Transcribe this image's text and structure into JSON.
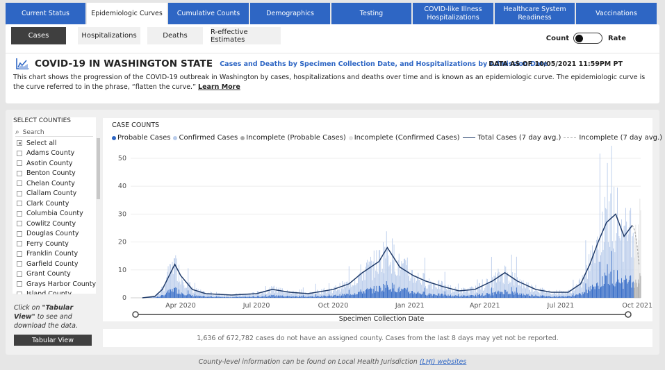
{
  "nav": {
    "tabs": [
      {
        "label": "Current Status",
        "active": false
      },
      {
        "label": "Epidemiologic Curves",
        "active": true
      },
      {
        "label": "Cumulative Counts",
        "active": false
      },
      {
        "label": "Demographics",
        "active": false
      },
      {
        "label": "Testing",
        "active": false
      },
      {
        "label": "COVID-like Illness Hospitalizations",
        "active": false
      },
      {
        "label": "Healthcare System Readiness",
        "active": false
      },
      {
        "label": "Vaccinations",
        "active": false
      }
    ]
  },
  "subtabs": [
    {
      "label": "Cases",
      "active": true
    },
    {
      "label": "Hospitalizations",
      "active": false
    },
    {
      "label": "Deaths",
      "active": false
    },
    {
      "label": "R-effective Estimates",
      "active": false
    }
  ],
  "toggle": {
    "left_label": "Count",
    "right_label": "Rate",
    "state": "Count"
  },
  "header": {
    "icon": "chart-icon",
    "title": "COVID-19 IN WASHINGTON STATE",
    "subtitle": "Cases and Deaths by Specimen Collection Date, and Hospitalizations by Admission Date",
    "data_as_of": "DATA AS OF 10/05/2021 11:59PM PT",
    "description": "This chart shows the progression of the COVID-19 outbreak in Washington by cases, hospitalizations and deaths over time and is known as an epidemiologic curve. The epidemiologic curve is the curve referred to in the phrase, “flatten the curve.”",
    "learn_more": "Learn More"
  },
  "county_filter": {
    "title": "SELECT COUNTIES",
    "search_placeholder": "Search",
    "select_all": "Select all",
    "counties": [
      "Adams County",
      "Asotin County",
      "Benton County",
      "Chelan County",
      "Clallam County",
      "Clark County",
      "Columbia County",
      "Cowlitz County",
      "Douglas County",
      "Ferry County",
      "Franklin County",
      "Garfield County",
      "Grant County",
      "Grays Harbor County",
      "Island County"
    ]
  },
  "tabular": {
    "note_prefix": "Click on ",
    "note_bold": "\"Tabular View\"",
    "note_suffix": " to see and download the data.",
    "button": "Tabular View"
  },
  "chart": {
    "heading": "CASE COUNTS",
    "legend": [
      {
        "label": "Probable Cases",
        "color": "#2e66c4",
        "kind": "dot"
      },
      {
        "label": "Confirmed Cases",
        "color": "#b9cceb",
        "kind": "dot"
      },
      {
        "label": "Incomplete (Probable Cases)",
        "color": "#a9a9a9",
        "kind": "dot"
      },
      {
        "label": "Incomplete (Confirmed Cases)",
        "color": "#e3e3e3",
        "kind": "dot"
      },
      {
        "label": "Total Cases (7 day avg.)",
        "color": "#1f3a68",
        "kind": "line"
      },
      {
        "label": "Incomplete (7 day avg.)",
        "color": "#aaaaaa",
        "kind": "dash"
      }
    ],
    "xlabel": "Specimen Collection Date",
    "footnote": "1,636 of 672,782 cases do not have an assigned county. Cases from the last 8 days may yet not be reported."
  },
  "chart_data": {
    "type": "bar",
    "title": "CASE COUNTS",
    "xlabel": "Specimen Collection Date",
    "ylabel": "",
    "ylim": [
      0,
      50
    ],
    "y_ticks": [
      "0",
      "10",
      "20",
      "30",
      "40",
      "50"
    ],
    "x_ticks": [
      "Apr 2020",
      "Jul 2020",
      "Oct 2020",
      "Jan 2021",
      "Apr 2021",
      "Jul 2021",
      "Oct 2021"
    ],
    "x_range": [
      "2020-02-01",
      "2021-10-05"
    ],
    "grid": true,
    "legend_position": "top",
    "series": [
      {
        "name": "Total Cases (7 day avg.)",
        "type": "line",
        "x": [
          "2020-02-15",
          "2020-03-01",
          "2020-03-10",
          "2020-03-20",
          "2020-03-25",
          "2020-04-01",
          "2020-04-15",
          "2020-05-01",
          "2020-06-01",
          "2020-07-01",
          "2020-07-20",
          "2020-08-10",
          "2020-09-01",
          "2020-10-01",
          "2020-10-20",
          "2020-11-05",
          "2020-11-25",
          "2020-12-05",
          "2020-12-20",
          "2021-01-05",
          "2021-01-20",
          "2021-02-10",
          "2021-03-01",
          "2021-03-20",
          "2021-04-10",
          "2021-04-25",
          "2021-05-10",
          "2021-06-01",
          "2021-06-20",
          "2021-07-10",
          "2021-07-25",
          "2021-08-05",
          "2021-08-15",
          "2021-08-25",
          "2021-09-05",
          "2021-09-15",
          "2021-09-25"
        ],
        "values": [
          0,
          0.5,
          3,
          9,
          12,
          8,
          3,
          1.5,
          1,
          1.5,
          3,
          2,
          1.5,
          3,
          5,
          9,
          13,
          18,
          11,
          8,
          6,
          4,
          2.5,
          3,
          6,
          9,
          6,
          3,
          2,
          2,
          5,
          12,
          20,
          27,
          30,
          22,
          26
        ]
      },
      {
        "name": "Incomplete (7 day avg.)",
        "type": "line",
        "x": [
          "2021-09-25",
          "2021-09-28",
          "2021-10-01",
          "2021-10-03"
        ],
        "values": [
          26,
          24,
          18,
          12
        ]
      }
    ]
  },
  "bottom_note": {
    "text": "County-level information can be found on Local Health Jurisdiction ",
    "link": "(LHJ) websites"
  }
}
